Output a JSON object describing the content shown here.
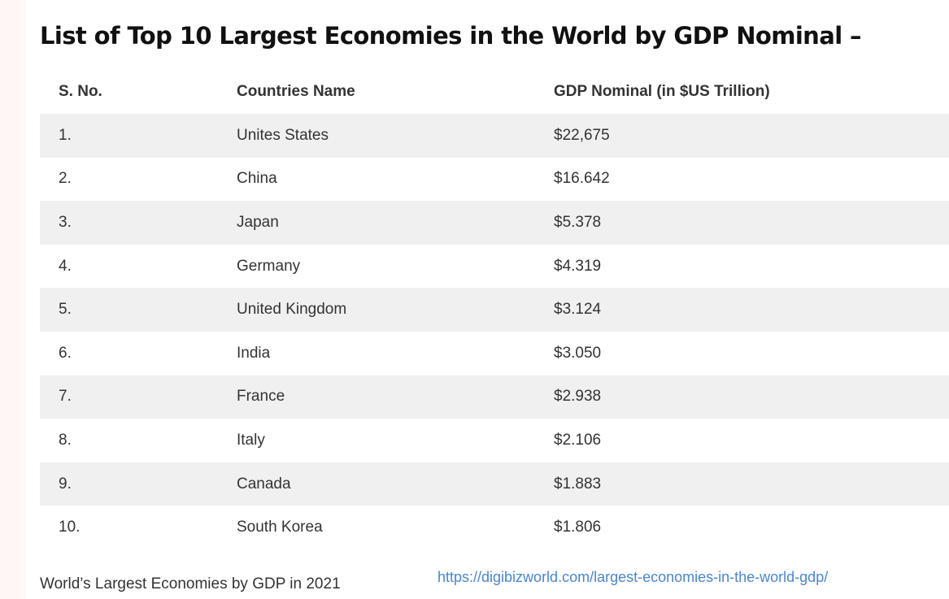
{
  "heading": "List of Top 10 Largest Economies in the World by GDP Nominal –",
  "table": {
    "headers": {
      "serial": "S. No.",
      "country": "Countries Name",
      "gdp": "GDP Nominal (in $US Trillion)"
    },
    "rows": [
      {
        "serial": "1.",
        "country": "Unites States",
        "gdp": "$22,675"
      },
      {
        "serial": "2.",
        "country": "China",
        "gdp": "$16.642"
      },
      {
        "serial": "3.",
        "country": "Japan",
        "gdp": "$5.378"
      },
      {
        "serial": "4.",
        "country": "Germany",
        "gdp": "$4.319"
      },
      {
        "serial": "5.",
        "country": "United Kingdom",
        "gdp": "$3.124"
      },
      {
        "serial": "6.",
        "country": "India",
        "gdp": "$3.050"
      },
      {
        "serial": "7.",
        "country": "France",
        "gdp": "$2.938"
      },
      {
        "serial": "8.",
        "country": "Italy",
        "gdp": "$2.106"
      },
      {
        "serial": "9.",
        "country": "Canada",
        "gdp": "$1.883"
      },
      {
        "serial": "10.",
        "country": "South Korea",
        "gdp": "$1.806"
      }
    ]
  },
  "caption": "World’s Largest Economies by GDP in 2021",
  "source_link": "https://digibizworld.com/largest-economies-in-the-world-gdp/",
  "colors": {
    "heading_text": "#111111",
    "body_text": "#333333",
    "striped_row": "#f0f0f0",
    "link": "#4a86d1"
  }
}
